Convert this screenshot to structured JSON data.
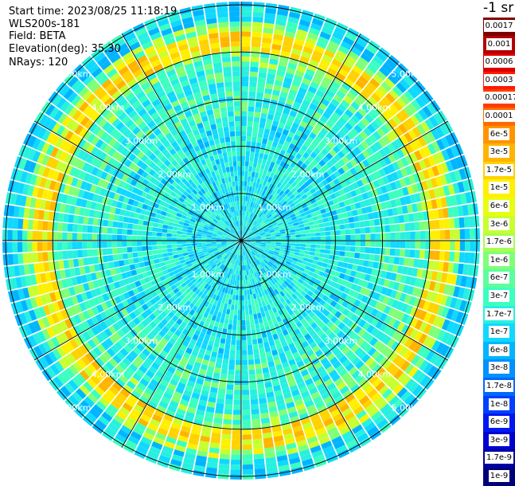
{
  "info": {
    "start_time": "Start time: 2023/08/25 11:18:19",
    "instrument": "WLS200s-181",
    "field": "Field: BETA",
    "elevation": "Elevation(deg): 35.30",
    "nrays": "NRays: 120"
  },
  "range_labels": [
    "1.00km",
    "2.00km",
    "3.00km",
    "4.00km",
    "5.00km"
  ],
  "colorbar": {
    "unit_label": "-1 sr",
    "ticks": [
      "0.0017",
      "0.001",
      "0.0006",
      "0.0003",
      "0.00017",
      "0.0001",
      "6e-5",
      "3e-5",
      "1.7e-5",
      "1e-5",
      "6e-6",
      "3e-6",
      "1.7e-6",
      "1e-6",
      "6e-7",
      "3e-7",
      "1.7e-7",
      "1e-7",
      "6e-8",
      "3e-8",
      "1.7e-8",
      "1e-8",
      "6e-9",
      "3e-9",
      "1.7e-9",
      "1e-9"
    ],
    "colors": [
      "#800000",
      "#b40000",
      "#dc0000",
      "#ff1a00",
      "#ff3c00",
      "#ff6a00",
      "#ff9400",
      "#ffb400",
      "#ffd200",
      "#fff000",
      "#e6ff10",
      "#c8ff30",
      "#a6ff52",
      "#80ff78",
      "#5cff9c",
      "#3cffc0",
      "#28f0e0",
      "#10d8ff",
      "#00b4ff",
      "#0090ff",
      "#0068ff",
      "#0040ff",
      "#0018f0",
      "#0000d0",
      "#0000a0",
      "#000078"
    ],
    "light_text_indices": [
      0,
      1,
      2,
      3,
      21,
      22,
      23,
      24,
      25
    ]
  },
  "plot": {
    "num_rays": 120,
    "max_range_km": 5.3,
    "grid_spokes_deg": [
      0,
      30,
      60,
      90,
      120,
      150,
      180,
      210,
      240,
      270,
      300,
      330
    ]
  }
}
